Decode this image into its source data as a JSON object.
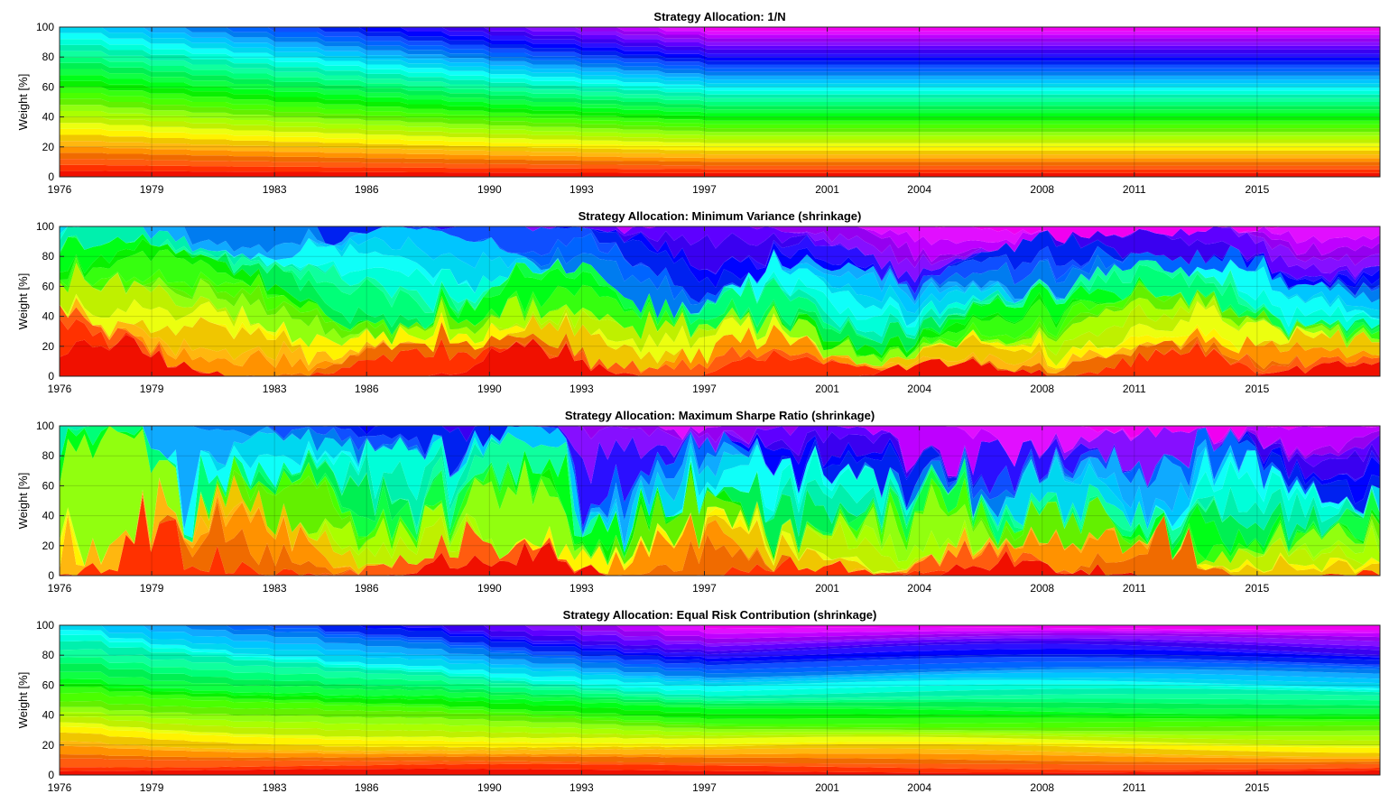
{
  "chart_data": [
    {
      "type": "area",
      "title": "Strategy Allocation: 1/N",
      "ylabel": "Weight [%]",
      "xlabel": "",
      "xlim": [
        1976,
        2019
      ],
      "ylim": [
        0,
        100
      ],
      "x_ticks": [
        1976,
        1979,
        1983,
        1986,
        1990,
        1993,
        1997,
        2001,
        2004,
        2008,
        2011,
        2015
      ],
      "y_ticks": [
        0,
        20,
        40,
        60,
        80,
        100
      ],
      "grid": true,
      "stacked_to": 100,
      "series_count": 40,
      "color_scheme": "rainbow red-to-magenta"
    },
    {
      "type": "area",
      "title": "Strategy Allocation: Minimum Variance (shrinkage)",
      "ylabel": "Weight [%]",
      "xlabel": "",
      "xlim": [
        1976,
        2019
      ],
      "ylim": [
        0,
        100
      ],
      "x_ticks": [
        1976,
        1979,
        1983,
        1986,
        1990,
        1993,
        1997,
        2001,
        2004,
        2008,
        2011,
        2015
      ],
      "y_ticks": [
        0,
        20,
        40,
        60,
        80,
        100
      ],
      "grid": true,
      "stacked_to": 100,
      "series_count": 40,
      "color_scheme": "rainbow red-to-magenta"
    },
    {
      "type": "area",
      "title": "Strategy Allocation: Maximum Sharpe Ratio (shrinkage)",
      "ylabel": "Weight [%]",
      "xlabel": "",
      "xlim": [
        1976,
        2019
      ],
      "ylim": [
        0,
        100
      ],
      "x_ticks": [
        1976,
        1979,
        1983,
        1986,
        1990,
        1993,
        1997,
        2001,
        2004,
        2008,
        2011,
        2015
      ],
      "y_ticks": [
        0,
        20,
        40,
        60,
        80,
        100
      ],
      "grid": true,
      "stacked_to": 100,
      "series_count": 40,
      "color_scheme": "rainbow red-to-magenta"
    },
    {
      "type": "area",
      "title": "Strategy Allocation: Equal Risk Contribution (shrinkage)",
      "ylabel": "Weight [%]",
      "xlabel": "",
      "xlim": [
        1976,
        2019
      ],
      "ylim": [
        0,
        100
      ],
      "x_ticks": [
        1976,
        1979,
        1983,
        1986,
        1990,
        1993,
        1997,
        2001,
        2004,
        2008,
        2011,
        2015
      ],
      "y_ticks": [
        0,
        20,
        40,
        60,
        80,
        100
      ],
      "grid": true,
      "stacked_to": 100,
      "series_count": 40,
      "color_scheme": "rainbow red-to-magenta"
    }
  ]
}
